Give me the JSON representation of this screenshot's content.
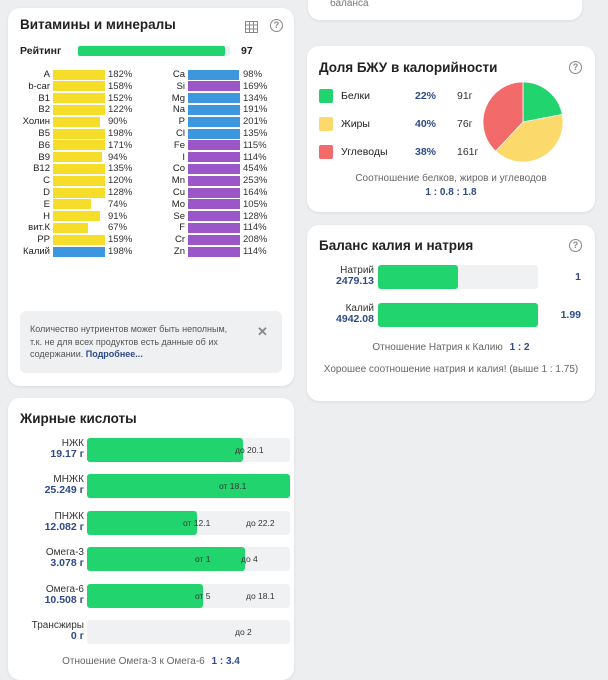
{
  "top_card": {
    "text": "баланса"
  },
  "vitamins": {
    "title": "Витамины и минералы",
    "rating_label": "Рейтинг",
    "rating_value": "97",
    "rating_fraction": 0.97,
    "left": [
      {
        "name": "A",
        "pct": "182%",
        "fill": 1.0,
        "color": "yellow"
      },
      {
        "name": "b-car",
        "pct": "158%",
        "fill": 1.0,
        "color": "yellow"
      },
      {
        "name": "B1",
        "pct": "152%",
        "fill": 1.0,
        "color": "yellow"
      },
      {
        "name": "B2",
        "pct": "122%",
        "fill": 1.0,
        "color": "yellow"
      },
      {
        "name": "Холин",
        "pct": "90%",
        "fill": 0.9,
        "color": "yellow"
      },
      {
        "name": "B5",
        "pct": "198%",
        "fill": 1.0,
        "color": "yellow"
      },
      {
        "name": "B6",
        "pct": "171%",
        "fill": 1.0,
        "color": "yellow"
      },
      {
        "name": "B9",
        "pct": "94%",
        "fill": 0.94,
        "color": "yellow"
      },
      {
        "name": "B12",
        "pct": "135%",
        "fill": 1.0,
        "color": "yellow"
      },
      {
        "name": "C",
        "pct": "120%",
        "fill": 1.0,
        "color": "yellow"
      },
      {
        "name": "D",
        "pct": "128%",
        "fill": 1.0,
        "color": "yellow"
      },
      {
        "name": "E",
        "pct": "74%",
        "fill": 0.74,
        "color": "yellow"
      },
      {
        "name": "H",
        "pct": "91%",
        "fill": 0.91,
        "color": "yellow"
      },
      {
        "name": "вит.К",
        "pct": "67%",
        "fill": 0.67,
        "color": "yellow"
      },
      {
        "name": "PP",
        "pct": "159%",
        "fill": 1.0,
        "color": "yellow"
      },
      {
        "name": "Калий",
        "pct": "198%",
        "fill": 1.0,
        "color": "blue"
      }
    ],
    "right": [
      {
        "name": "Ca",
        "pct": "98%",
        "fill": 0.98,
        "color": "blue"
      },
      {
        "name": "Si",
        "pct": "169%",
        "fill": 1.0,
        "color": "purple"
      },
      {
        "name": "Mg",
        "pct": "134%",
        "fill": 1.0,
        "color": "blue"
      },
      {
        "name": "Na",
        "pct": "191%",
        "fill": 1.0,
        "color": "blue"
      },
      {
        "name": "P",
        "pct": "201%",
        "fill": 1.0,
        "color": "blue"
      },
      {
        "name": "Cl",
        "pct": "135%",
        "fill": 1.0,
        "color": "blue"
      },
      {
        "name": "Fe",
        "pct": "115%",
        "fill": 1.0,
        "color": "purple"
      },
      {
        "name": "I",
        "pct": "114%",
        "fill": 1.0,
        "color": "purple"
      },
      {
        "name": "Co",
        "pct": "454%",
        "fill": 1.0,
        "color": "purple"
      },
      {
        "name": "Mn",
        "pct": "253%",
        "fill": 1.0,
        "color": "purple"
      },
      {
        "name": "Cu",
        "pct": "164%",
        "fill": 1.0,
        "color": "purple"
      },
      {
        "name": "Mo",
        "pct": "105%",
        "fill": 1.0,
        "color": "purple"
      },
      {
        "name": "Se",
        "pct": "128%",
        "fill": 1.0,
        "color": "purple"
      },
      {
        "name": "F",
        "pct": "114%",
        "fill": 1.0,
        "color": "purple"
      },
      {
        "name": "Cr",
        "pct": "208%",
        "fill": 1.0,
        "color": "purple"
      },
      {
        "name": "Zn",
        "pct": "114%",
        "fill": 1.0,
        "color": "purple"
      }
    ],
    "note_text": "Количество нутриентов может быть неполным, т.к. не для всех продуктов есть данные об их содержании.",
    "note_link": "Подробнее..."
  },
  "fatty": {
    "title": "Жирные кислоты",
    "rows": [
      {
        "name": "НЖК",
        "value": "19.17 г",
        "fill": 0.77,
        "tags": [
          {
            "text": "до 20.1",
            "at": 0.8
          }
        ]
      },
      {
        "name": "МНЖК",
        "value": "25.249 г",
        "fill": 1.0,
        "tags": [
          {
            "text": "от 18.1",
            "at": 0.72
          }
        ]
      },
      {
        "name": "ПНЖК",
        "value": "12.082 г",
        "fill": 0.54,
        "tags": [
          {
            "text": "от 12.1",
            "at": 0.54
          },
          {
            "text": "до 22.2",
            "at": 0.85
          }
        ]
      },
      {
        "name": "Омега-3",
        "value": "3.078 г",
        "fill": 0.78,
        "tags": [
          {
            "text": "от 1",
            "at": 0.6
          },
          {
            "text": "до 4",
            "at": 0.83
          }
        ]
      },
      {
        "name": "Омега-6",
        "value": "10.508 г",
        "fill": 0.57,
        "tags": [
          {
            "text": "от 5",
            "at": 0.6
          },
          {
            "text": "до 18.1",
            "at": 0.85
          }
        ]
      },
      {
        "name": "Трансжиры",
        "value": "0 г",
        "fill": 0,
        "tags": [
          {
            "text": "до 2",
            "at": 0.8
          }
        ]
      }
    ],
    "ratio_label": "Отношение Омега-3 к Омега-6",
    "ratio_value": "1 : 3.4"
  },
  "bju": {
    "title": "Доля БЖУ в калорийности",
    "items": [
      {
        "name": "Белки",
        "pct": "22%",
        "grams": "91г",
        "color": "#22d46e"
      },
      {
        "name": "Жиры",
        "pct": "40%",
        "grams": "76г",
        "color": "#fcd96b"
      },
      {
        "name": "Углеводы",
        "pct": "38%",
        "grams": "161г",
        "color": "#f26a6a"
      }
    ],
    "ratio_label": "Соотношение белков, жиров и углеводов",
    "ratio_value": "1 : 0.8 : 1.8"
  },
  "chart_data": {
    "type": "pie",
    "categories": [
      "Белки",
      "Жиры",
      "Углеводы"
    ],
    "values": [
      22,
      40,
      38
    ]
  },
  "kna": {
    "title": "Баланс калия и натрия",
    "rows": [
      {
        "name": "Натрий",
        "value": "2479.13",
        "fill": 0.5,
        "ratio": "1"
      },
      {
        "name": "Калий",
        "value": "4942.08",
        "fill": 1.0,
        "ratio": "1.99"
      }
    ],
    "ratio_label": "Отношение Натрия к Калию",
    "ratio_value": "1 : 2",
    "comment": "Хорошее соотношение натрия и калия! (выше 1 : 1.75)"
  }
}
